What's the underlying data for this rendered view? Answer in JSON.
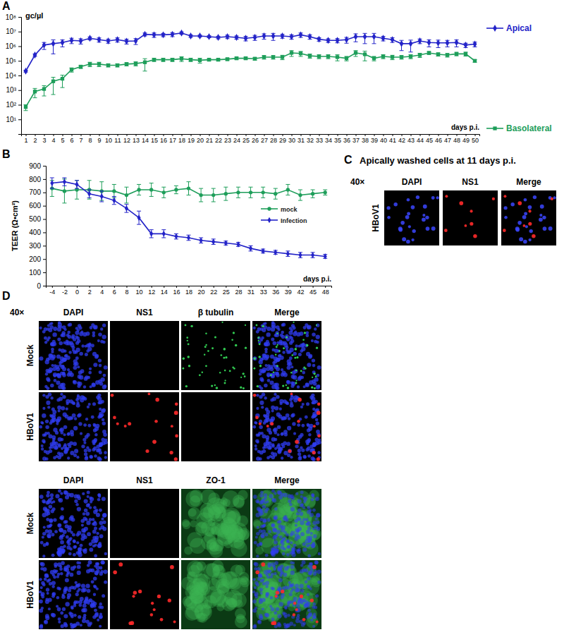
{
  "chart_data": [
    {
      "type": "line",
      "x_label": "days p.i.",
      "y_label": "gc/µl",
      "log": "y",
      "legend": "right",
      "x": [
        1,
        2,
        3,
        4,
        5,
        6,
        7,
        8,
        9,
        10,
        11,
        12,
        13,
        14,
        15,
        16,
        17,
        18,
        19,
        20,
        21,
        22,
        23,
        24,
        25,
        26,
        27,
        28,
        29,
        30,
        31,
        32,
        33,
        34,
        35,
        36,
        37,
        38,
        39,
        40,
        41,
        42,
        43,
        44,
        45,
        46,
        47,
        48,
        49,
        50
      ],
      "xlim": [
        0.5,
        50.5
      ],
      "xticks": [
        1,
        2,
        3,
        4,
        5,
        6,
        7,
        8,
        9,
        10,
        11,
        12,
        13,
        14,
        15,
        16,
        17,
        18,
        19,
        20,
        21,
        22,
        23,
        24,
        25,
        26,
        27,
        28,
        29,
        30,
        31,
        32,
        33,
        34,
        35,
        36,
        37,
        38,
        39,
        40,
        41,
        42,
        43,
        44,
        45,
        46,
        47,
        48,
        49,
        50
      ],
      "ylim": [
        1,
        100000000
      ],
      "yticks": [
        {
          "value": 10,
          "label": "10¹"
        },
        {
          "value": 100,
          "label": "10²"
        },
        {
          "value": 1000,
          "label": "10³"
        },
        {
          "value": 10000,
          "label": "10⁴"
        },
        {
          "value": 100000,
          "label": "10⁵"
        },
        {
          "value": 1000000,
          "label": "10⁶"
        },
        {
          "value": 10000000,
          "label": "10⁷"
        },
        {
          "value": 100000000,
          "label": "10⁸"
        }
      ],
      "series": [
        {
          "name": "Apical",
          "color": "#2323c8",
          "marker": "diamond",
          "values": [
            20000,
            250000,
            1200000,
            1500000,
            1800000,
            2500000,
            2300000,
            3500000,
            2800000,
            2300000,
            2800000,
            2200000,
            2300000,
            6500000,
            6000000,
            6000000,
            6500000,
            8000000,
            5000000,
            5000000,
            4500000,
            4000000,
            4500000,
            4000000,
            3500000,
            4000000,
            5000000,
            5000000,
            5000000,
            4500000,
            6000000,
            4500000,
            3000000,
            2500000,
            2500000,
            2800000,
            4500000,
            4500000,
            4500000,
            3500000,
            2800000,
            1500000,
            1500000,
            2300000,
            1800000,
            1700000,
            1700000,
            1800000,
            1200000,
            1400000
          ],
          "errors": [
            3000,
            50000,
            600000,
            1200000,
            900000,
            1000000,
            900000,
            800000,
            900000,
            700000,
            900000,
            800000,
            1000000,
            1500000,
            2000000,
            1500000,
            2000000,
            1500000,
            1000000,
            800000,
            700000,
            800000,
            1200000,
            1000000,
            1200000,
            1500000,
            2000000,
            2500000,
            1500000,
            1500000,
            2000000,
            1500000,
            800000,
            700000,
            800000,
            1200000,
            2500000,
            3000000,
            3000000,
            1200000,
            1000000,
            1000000,
            1100000,
            800000,
            900000,
            900000,
            800000,
            900000,
            400000,
            500000
          ]
        },
        {
          "name": "Basolateral",
          "color": "#1e9e5a",
          "marker": "square",
          "values": [
            70,
            800,
            1200,
            4000,
            6000,
            25000,
            40000,
            60000,
            60000,
            50000,
            50000,
            60000,
            65000,
            80000,
            120000,
            120000,
            120000,
            140000,
            120000,
            110000,
            120000,
            120000,
            130000,
            150000,
            150000,
            140000,
            180000,
            180000,
            180000,
            350000,
            320000,
            220000,
            200000,
            200000,
            180000,
            150000,
            350000,
            280000,
            150000,
            200000,
            180000,
            180000,
            200000,
            250000,
            350000,
            280000,
            250000,
            300000,
            300000,
            100000
          ],
          "errors": [
            30,
            500,
            800,
            3500,
            4500,
            8000,
            10000,
            20000,
            20000,
            12000,
            12000,
            15000,
            20000,
            60000,
            30000,
            30000,
            30000,
            50000,
            30000,
            40000,
            20000,
            20000,
            25000,
            30000,
            30000,
            30000,
            50000,
            50000,
            60000,
            150000,
            120000,
            70000,
            60000,
            60000,
            80000,
            50000,
            150000,
            180000,
            50000,
            60000,
            60000,
            50000,
            60000,
            80000,
            80000,
            70000,
            70000,
            80000,
            90000,
            20000
          ]
        }
      ]
    },
    {
      "type": "line",
      "x_label": "days p.i.",
      "y_label": "TEER (Ω•cm²)",
      "legend": "right",
      "categories": [
        "-4",
        "-2",
        "0",
        "2",
        "4",
        "6",
        "8",
        "10",
        "12",
        "14",
        "16",
        "18",
        "20",
        "22",
        "25",
        "28",
        "31",
        "33",
        "36",
        "39",
        "42",
        "45",
        "48"
      ],
      "ylim": [
        0,
        900
      ],
      "yticks": [
        0,
        100,
        200,
        300,
        400,
        500,
        600,
        700,
        800,
        900
      ],
      "series": [
        {
          "name": "mock",
          "color": "#1e9e5a",
          "marker": "circle",
          "values": [
            730,
            710,
            720,
            720,
            710,
            710,
            680,
            720,
            720,
            700,
            720,
            730,
            680,
            680,
            690,
            700,
            700,
            700,
            690,
            720,
            680,
            690,
            700
          ],
          "errors": [
            60,
            90,
            70,
            70,
            70,
            50,
            60,
            40,
            50,
            40,
            30,
            50,
            50,
            50,
            50,
            40,
            40,
            40,
            40,
            40,
            40,
            30,
            20
          ]
        },
        {
          "name": "Infection",
          "color": "#2323c8",
          "marker": "diamond",
          "values": [
            770,
            780,
            760,
            690,
            670,
            640,
            580,
            510,
            390,
            390,
            370,
            360,
            340,
            330,
            320,
            310,
            280,
            260,
            250,
            240,
            230,
            230,
            220
          ],
          "errors": [
            40,
            30,
            30,
            30,
            40,
            30,
            30,
            50,
            30,
            30,
            20,
            20,
            20,
            20,
            15,
            15,
            20,
            15,
            15,
            20,
            20,
            20,
            15
          ]
        }
      ]
    }
  ],
  "figure": {
    "panel_labels": [
      "A",
      "B",
      "C",
      "D"
    ],
    "panel_c": {
      "title": "Apically washed cells at 11 days p.i.",
      "magnification": "40×",
      "columns": [
        "DAPI",
        "NS1",
        "Merge"
      ],
      "rows": [
        "HBoV1"
      ]
    },
    "panel_d": {
      "magnification": "40×",
      "blocks": [
        {
          "columns": [
            "DAPI",
            "NS1",
            "β tubulin",
            "Merge"
          ],
          "rows": [
            "Mock",
            "HBoV1"
          ]
        },
        {
          "columns": [
            "DAPI",
            "NS1",
            "ZO-1",
            "Merge"
          ],
          "rows": [
            "Mock",
            "HBoV1"
          ]
        }
      ]
    }
  }
}
